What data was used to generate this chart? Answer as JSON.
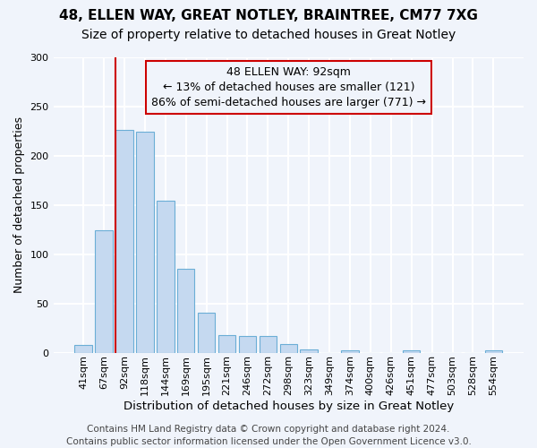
{
  "title1": "48, ELLEN WAY, GREAT NOTLEY, BRAINTREE, CM77 7XG",
  "title2": "Size of property relative to detached houses in Great Notley",
  "xlabel": "Distribution of detached houses by size in Great Notley",
  "ylabel": "Number of detached properties",
  "categories": [
    "41sqm",
    "67sqm",
    "92sqm",
    "118sqm",
    "144sqm",
    "169sqm",
    "195sqm",
    "221sqm",
    "246sqm",
    "272sqm",
    "298sqm",
    "323sqm",
    "349sqm",
    "374sqm",
    "400sqm",
    "426sqm",
    "451sqm",
    "477sqm",
    "503sqm",
    "528sqm",
    "554sqm"
  ],
  "values": [
    8,
    124,
    226,
    224,
    154,
    85,
    41,
    18,
    17,
    17,
    9,
    3,
    0,
    2,
    0,
    0,
    2,
    0,
    0,
    0,
    2
  ],
  "bar_color": "#c5d9f0",
  "bar_edge_color": "#6baed6",
  "vline_color": "#cc0000",
  "vline_index": 2,
  "annotation_text": "48 ELLEN WAY: 92sqm\n← 13% of detached houses are smaller (121)\n86% of semi-detached houses are larger (771) →",
  "annotation_box_color": "#cc0000",
  "footnote": "Contains HM Land Registry data © Crown copyright and database right 2024.\nContains public sector information licensed under the Open Government Licence v3.0.",
  "ylim": [
    0,
    300
  ],
  "background_color": "#f0f4fb",
  "grid_color": "#ffffff",
  "title1_fontsize": 11,
  "title2_fontsize": 10,
  "xlabel_fontsize": 9.5,
  "ylabel_fontsize": 9,
  "tick_fontsize": 8,
  "footnote_fontsize": 7.5,
  "ann_fontsize": 9
}
